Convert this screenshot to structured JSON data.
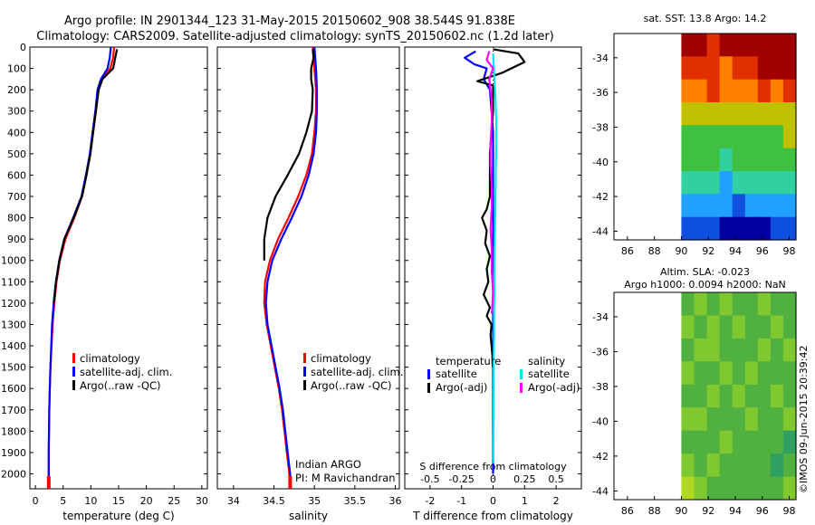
{
  "header": {
    "title1": "Argo profile: IN 2901344_123 31-May-2015 20150602_908 38.544S 91.838E",
    "title2": "Climatology: CARS2009. Satellite-adjusted climatology: synTS_20150602.nc (1.2d later)"
  },
  "colors": {
    "climatology": "#ff0000",
    "satellite": "#0000ff",
    "argo": "#000000",
    "sal_satellite": "#00e5ee",
    "sal_argo": "#ff00ff"
  },
  "chart_data": [
    {
      "type": "line",
      "name": "temperature-profile",
      "xlabel": "temperature (deg C)",
      "ylabel": "",
      "xlim": [
        -1,
        31
      ],
      "ylim": [
        2070,
        0
      ],
      "xticks": [
        0,
        5,
        10,
        15,
        20,
        25,
        30
      ],
      "yticks": [
        0,
        100,
        200,
        300,
        400,
        500,
        600,
        700,
        800,
        900,
        1000,
        1100,
        1200,
        1300,
        1400,
        1500,
        1600,
        1700,
        1800,
        1900,
        2000
      ],
      "legend": [
        "climatology",
        "satellite-adj. clim.",
        "Argo(..raw -QC)"
      ],
      "series": [
        {
          "name": "climatology",
          "color": "#ff0000",
          "x": [
            14.2,
            14.0,
            13.5,
            12.0,
            11.3,
            10.9,
            10.4,
            9.9,
            9.2,
            8.4,
            7.0,
            5.4,
            4.4,
            3.8,
            3.4,
            3.1,
            2.9,
            2.7,
            2.6,
            2.5,
            2.45,
            2.4,
            2.4
          ],
          "y": [
            0,
            50,
            100,
            150,
            200,
            300,
            400,
            500,
            600,
            700,
            800,
            900,
            1000,
            1100,
            1200,
            1300,
            1400,
            1500,
            1600,
            1700,
            1800,
            1900,
            2070
          ]
        },
        {
          "name": "satellite-adj. clim.",
          "color": "#0000ff",
          "x": [
            13.6,
            13.4,
            13.0,
            11.8,
            11.2,
            10.8,
            10.3,
            9.8,
            9.1,
            8.3,
            6.8,
            5.2,
            4.3,
            3.7,
            3.3,
            3.0,
            2.85,
            2.7,
            2.6,
            2.5,
            2.45,
            2.4,
            2.4
          ],
          "y": [
            0,
            50,
            100,
            150,
            200,
            300,
            400,
            500,
            600,
            700,
            800,
            900,
            1000,
            1100,
            1200,
            1300,
            1400,
            1500,
            1600,
            1700,
            1800,
            1900,
            2070
          ]
        },
        {
          "name": "Argo(..raw -QC)",
          "color": "#000000",
          "x": [
            14.7,
            14.4,
            14.0,
            12.1,
            11.4,
            10.9,
            10.4,
            9.9,
            9.2,
            8.4,
            6.9,
            5.2,
            4.3,
            3.7,
            3.3
          ],
          "y": [
            10,
            50,
            100,
            150,
            200,
            300,
            400,
            500,
            600,
            700,
            800,
            900,
            1000,
            1100,
            1200
          ]
        }
      ]
    },
    {
      "type": "line",
      "name": "salinity-profile",
      "xlabel": "salinity",
      "ylabel": "",
      "xlim": [
        33.8,
        36.05
      ],
      "ylim": [
        2070,
        0
      ],
      "xticks": [
        34,
        34.5,
        35,
        35.5,
        36
      ],
      "legend": [
        "climatology",
        "satellite-adj. clim.",
        "Argo(..raw -QC)"
      ],
      "annotation": [
        "Indian ARGO",
        "PI: M Ravichandran"
      ],
      "series": [
        {
          "name": "climatology",
          "color": "#ff0000",
          "x": [
            34.98,
            35.0,
            35.02,
            35.02,
            35.0,
            34.97,
            34.9,
            34.8,
            34.68,
            34.55,
            34.45,
            34.39,
            34.38,
            34.41,
            34.46,
            34.51,
            34.56,
            34.6,
            34.63,
            34.66,
            34.69,
            34.7
          ],
          "y": [
            0,
            100,
            200,
            300,
            400,
            500,
            600,
            700,
            800,
            900,
            1000,
            1100,
            1200,
            1300,
            1400,
            1500,
            1600,
            1700,
            1800,
            1900,
            2000,
            2070
          ]
        },
        {
          "name": "satellite-adj. clim.",
          "color": "#0000ff",
          "x": [
            35.0,
            35.02,
            35.03,
            35.03,
            35.02,
            34.99,
            34.93,
            34.84,
            34.72,
            34.59,
            34.48,
            34.42,
            34.4,
            34.42,
            34.47,
            34.52,
            34.57,
            34.61,
            34.64,
            34.67,
            34.7,
            34.71
          ],
          "y": [
            0,
            100,
            200,
            300,
            400,
            500,
            600,
            700,
            800,
            900,
            1000,
            1100,
            1200,
            1300,
            1400,
            1500,
            1600,
            1700,
            1800,
            1900,
            2000,
            2070
          ]
        },
        {
          "name": "Argo(..raw -QC)",
          "color": "#000000",
          "x": [
            34.98,
            34.99,
            34.96,
            34.96,
            34.98,
            34.97,
            34.9,
            34.81,
            34.67,
            34.52,
            34.42,
            34.38,
            34.38
          ],
          "y": [
            10,
            50,
            100,
            150,
            200,
            300,
            400,
            500,
            600,
            700,
            800,
            900,
            1000
          ]
        }
      ]
    },
    {
      "type": "line",
      "name": "difference-profile",
      "xlabel": "T difference from climatology",
      "x2label": "S difference from climatology",
      "xlim": [
        -2.8,
        2.8
      ],
      "ylim": [
        2070,
        0
      ],
      "xticks": [
        -2,
        -1,
        0,
        1,
        2
      ],
      "x2ticks": [
        "-0.5",
        "-0.25",
        "0",
        "0.25",
        "0.5"
      ],
      "legend_headers": [
        "temperature",
        "salinity"
      ],
      "legend": [
        "satellite",
        "Argo(-adj)",
        "satellite",
        "Argo(-adj)"
      ],
      "series": [
        {
          "name": "satellite",
          "group": "temperature",
          "color": "#0000ff",
          "x": [
            -0.55,
            -0.9,
            -0.6,
            -0.2,
            -0.3,
            -0.1,
            -0.05,
            0,
            0,
            0,
            0,
            0,
            0,
            0,
            0,
            0,
            0,
            0
          ],
          "y": [
            20,
            50,
            80,
            100,
            150,
            200,
            300,
            400,
            600,
            800,
            1000,
            1200,
            1400,
            1500,
            1600,
            1800,
            1900,
            2000
          ]
        },
        {
          "name": "Argo(-adj)",
          "group": "temperature",
          "color": "#000000",
          "x": [
            0.0,
            0.8,
            1.0,
            0.3,
            -0.5,
            0.0,
            0.0,
            -0.1,
            -0.1,
            -0.2,
            -0.35,
            -0.2,
            -0.25,
            -0.1,
            -0.2,
            -0.15,
            -0.3,
            -0.1,
            -0.2,
            -0.05,
            -0.08,
            -0.05,
            -0.02,
            -0.01
          ],
          "y": [
            10,
            30,
            70,
            120,
            160,
            180,
            300,
            500,
            700,
            760,
            800,
            860,
            920,
            980,
            1040,
            1100,
            1160,
            1220,
            1260,
            1300,
            1350,
            1400,
            1450,
            1500
          ]
        },
        {
          "name": "satellite",
          "group": "salinity",
          "color": "#00e5ee",
          "x": [
            0.0,
            0.005,
            0.01,
            0.02,
            0.025,
            0.025,
            0.022,
            0.02,
            0.018,
            0.015,
            0.012,
            0.01,
            0.01,
            0.008,
            0.008,
            0.005,
            0.005,
            0.004,
            0.004,
            0.003,
            0.003
          ],
          "y": [
            30,
            80,
            150,
            250,
            350,
            450,
            550,
            650,
            750,
            850,
            950,
            1050,
            1150,
            1250,
            1350,
            1450,
            1550,
            1650,
            1750,
            1850,
            1950
          ]
        },
        {
          "name": "Argo(-adj)",
          "group": "salinity",
          "color": "#ff00ff",
          "x": [
            -0.03,
            -0.05,
            0.0,
            -0.03,
            -0.01,
            -0.01,
            -0.02,
            -0.02,
            -0.01,
            -0.01,
            -0.02,
            -0.01,
            -0.01,
            0.0,
            -0.01
          ],
          "y": [
            20,
            60,
            100,
            150,
            250,
            350,
            450,
            550,
            650,
            750,
            850,
            950,
            1050,
            1150,
            1250
          ]
        }
      ]
    },
    {
      "type": "heatmap",
      "name": "sst-map",
      "title": "sat. SST: 13.8 Argo: 14.2",
      "xlim": [
        85,
        98.5
      ],
      "ylim": [
        -44.5,
        -32.6
      ],
      "xticks": [
        86,
        88,
        90,
        92,
        94,
        96,
        98
      ],
      "yticks": [
        -34,
        -36,
        -38,
        -40,
        -42,
        -44
      ],
      "data_extent_x": [
        90,
        98.5
      ],
      "colormap": [
        "#0000a0",
        "#1050e0",
        "#20a0ff",
        "#30d0a0",
        "#40c040",
        "#c0c000",
        "#ff8000",
        "#e03000",
        "#a00000"
      ],
      "rows_north_to_south": [
        [
          8,
          8,
          7,
          8,
          8,
          8,
          8,
          8,
          8
        ],
        [
          7,
          7,
          7,
          6,
          7,
          7,
          8,
          8,
          8
        ],
        [
          6,
          6,
          7,
          6,
          6,
          6,
          7,
          6,
          7
        ],
        [
          5,
          5,
          5,
          5,
          5,
          5,
          5,
          5,
          5
        ],
        [
          4,
          4,
          4,
          4,
          4,
          4,
          4,
          4,
          5
        ],
        [
          4,
          4,
          4,
          3,
          4,
          4,
          4,
          4,
          4
        ],
        [
          3,
          3,
          3,
          2,
          3,
          3,
          3,
          3,
          3
        ],
        [
          2,
          2,
          2,
          2,
          1,
          2,
          2,
          2,
          2
        ],
        [
          1,
          1,
          1,
          0,
          0,
          0,
          0,
          1,
          1
        ]
      ]
    },
    {
      "type": "heatmap",
      "name": "sla-map",
      "title": "Altim. SLA: -0.023",
      "subtitle": "Argo h1000: 0.0094 h2000: NaN",
      "xlim": [
        85,
        98.5
      ],
      "ylim": [
        -44.5,
        -32.6
      ],
      "xticks": [
        86,
        88,
        90,
        92,
        94,
        96,
        98
      ],
      "yticks": [
        -34,
        -36,
        -38,
        -40,
        -42,
        -44
      ],
      "data_extent_x": [
        90,
        98.5
      ],
      "colormap": [
        "#30a060",
        "#50b040",
        "#80c830",
        "#b0d820",
        "#d8e818"
      ],
      "rows_north_to_south": [
        [
          1,
          2,
          1,
          2,
          1,
          1,
          2,
          1,
          1
        ],
        [
          2,
          1,
          2,
          1,
          2,
          1,
          1,
          2,
          1
        ],
        [
          1,
          2,
          2,
          1,
          1,
          1,
          2,
          1,
          2
        ],
        [
          2,
          1,
          1,
          2,
          1,
          2,
          1,
          1,
          1
        ],
        [
          1,
          1,
          2,
          1,
          2,
          1,
          1,
          2,
          1
        ],
        [
          2,
          2,
          1,
          1,
          1,
          2,
          1,
          1,
          2
        ],
        [
          1,
          1,
          1,
          2,
          1,
          1,
          1,
          1,
          0
        ],
        [
          2,
          1,
          2,
          1,
          1,
          1,
          1,
          0,
          1
        ],
        [
          3,
          2,
          1,
          1,
          1,
          1,
          1,
          1,
          2
        ]
      ]
    }
  ],
  "credit": "©IMOS 09-Jun-2015 20:39:42"
}
